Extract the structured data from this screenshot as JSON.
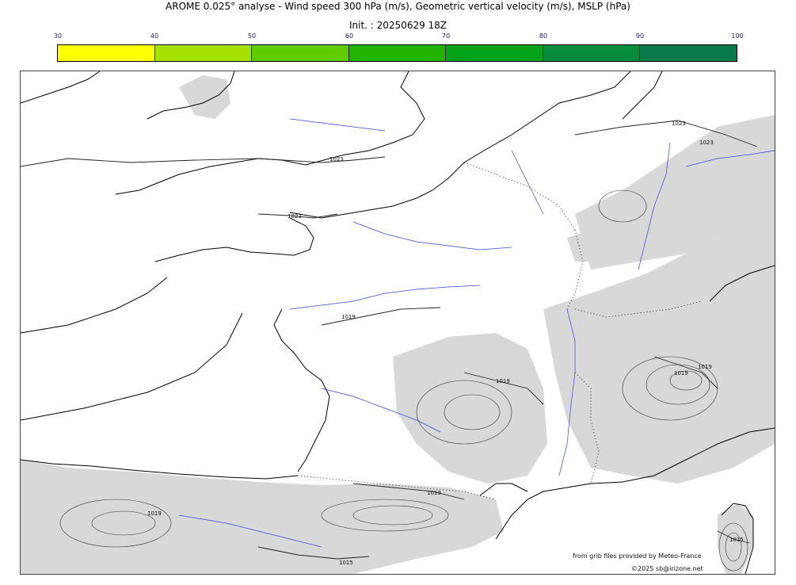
{
  "title": "AROME 0.025° analyse - Wind speed 300 hPa (m/s), Geometric vertical velocity (m/s), MSLP (hPa)",
  "subtitle": "Init. : 20250629 18Z",
  "colorbar": {
    "ticks": [
      "30",
      "40",
      "50",
      "60",
      "70",
      "80",
      "90",
      "100"
    ],
    "colors": [
      "#ffff00",
      "#a6e200",
      "#5fcc00",
      "#22b400",
      "#04a31a",
      "#078b3c",
      "#0a7a4a"
    ]
  },
  "isobars": {
    "labels": [
      "1023",
      "1023",
      "1023",
      "1023",
      "1019",
      "1019",
      "1019",
      "1019",
      "1019",
      "1019",
      "1015",
      "1015"
    ]
  },
  "credits": {
    "source": "from grib files provided by Meteo-France",
    "copyright": "©2025 sb@irizone.net"
  },
  "colors": {
    "land_shade": "#d8d8d8",
    "coast": "#000000",
    "rivers": "#3344dd",
    "borders": "#000000"
  }
}
